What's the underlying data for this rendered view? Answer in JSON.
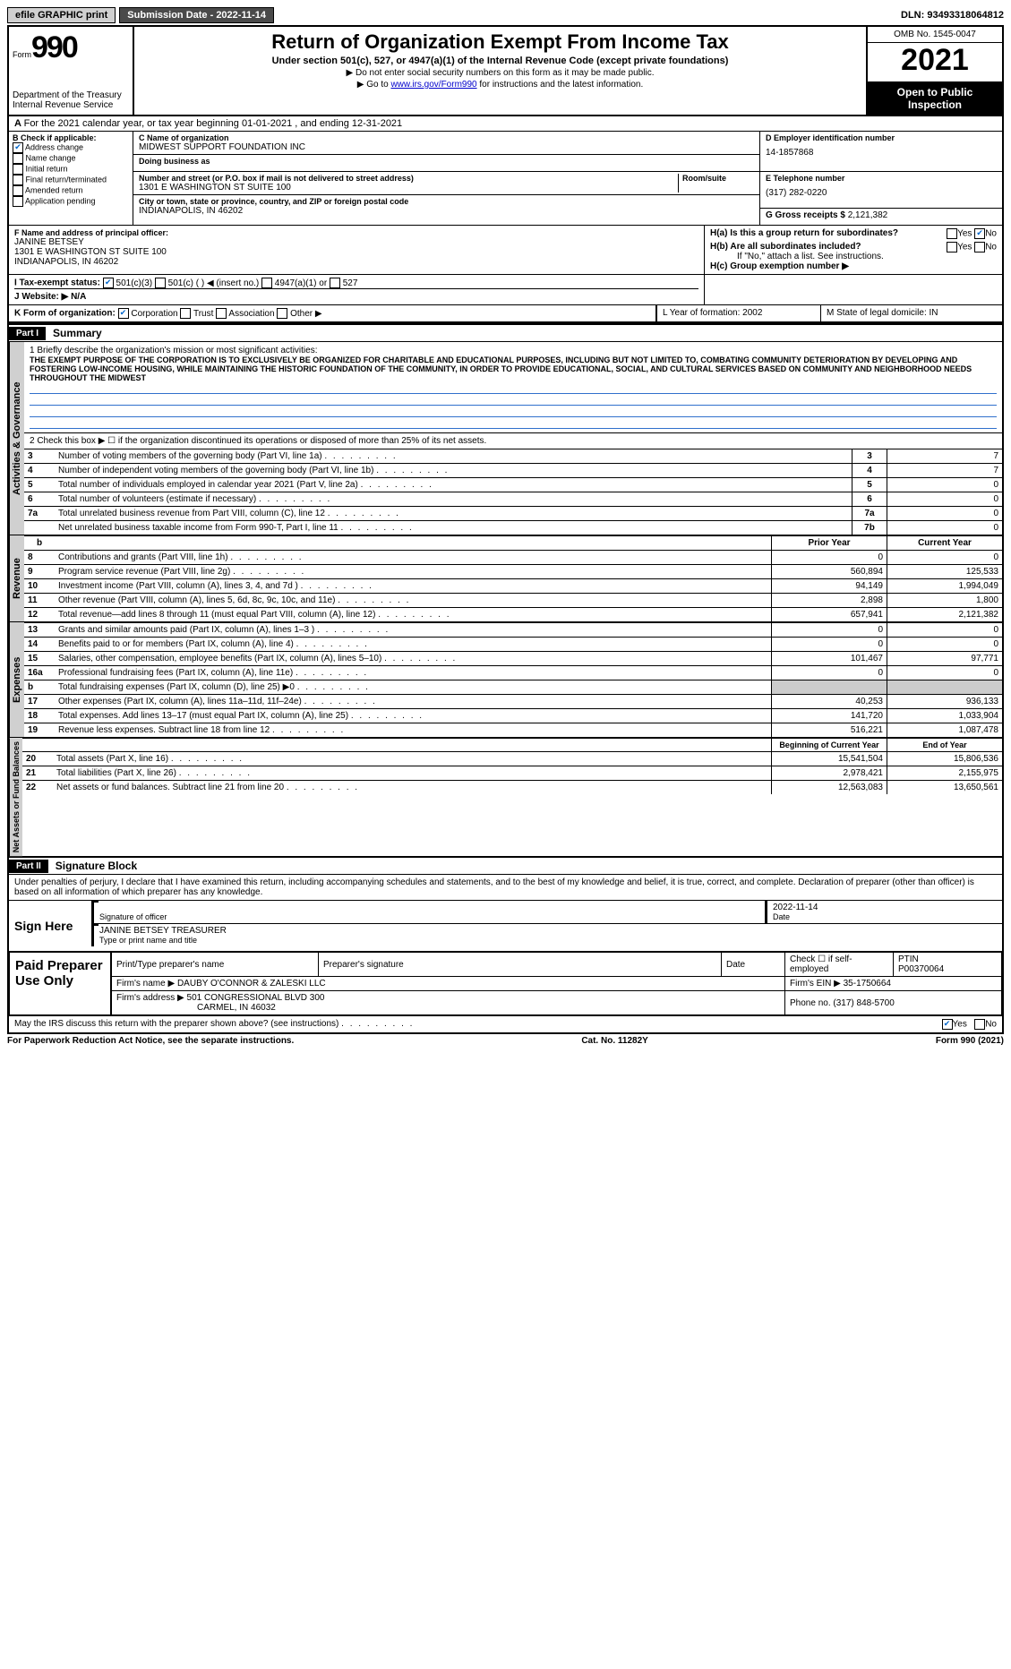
{
  "topbar": {
    "efile": "efile GRAPHIC print",
    "submission_label": "Submission Date - 2022-11-14",
    "dln_label": "DLN: 93493318064812"
  },
  "header": {
    "form_word": "Form",
    "form_num": "990",
    "dept": "Department of the Treasury Internal Revenue Service",
    "title": "Return of Organization Exempt From Income Tax",
    "sub1": "Under section 501(c), 527, or 4947(a)(1) of the Internal Revenue Code (except private foundations)",
    "sub2a": "▶ Do not enter social security numbers on this form as it may be made public.",
    "sub2b_pre": "▶ Go to ",
    "sub2b_link": "www.irs.gov/Form990",
    "sub2b_post": " for instructions and the latest information.",
    "omb": "OMB No. 1545-0047",
    "year": "2021",
    "open": "Open to Public Inspection"
  },
  "lineA": "For the 2021 calendar year, or tax year beginning 01-01-2021   , and ending 12-31-2021",
  "colB": {
    "title": "B Check if applicable:",
    "items": [
      "Address change",
      "Name change",
      "Initial return",
      "Final return/terminated",
      "Amended return",
      "Application pending"
    ],
    "checked_idx": 0
  },
  "colC": {
    "name_label": "C Name of organization",
    "name": "MIDWEST SUPPORT FOUNDATION INC",
    "dba_label": "Doing business as",
    "addr_label": "Number and street (or P.O. box if mail is not delivered to street address)",
    "room_label": "Room/suite",
    "addr": "1301 E WASHINGTON ST SUITE 100",
    "city_label": "City or town, state or province, country, and ZIP or foreign postal code",
    "city": "INDIANAPOLIS, IN  46202"
  },
  "colD": {
    "ein_label": "D Employer identification number",
    "ein": "14-1857868",
    "tel_label": "E Telephone number",
    "tel": "(317) 282-0220",
    "gross_label": "G Gross receipts $",
    "gross": "2,121,382"
  },
  "secF": {
    "label": "F  Name and address of principal officer:",
    "name": "JANINE BETSEY",
    "l1": "1301 E WASHINGTON ST SUITE 100",
    "l2": "INDIANAPOLIS, IN  46202"
  },
  "secH": {
    "ha": "H(a)  Is this a group return for subordinates?",
    "hb": "H(b)  Are all subordinates included?",
    "hb_note": "If \"No,\" attach a list. See instructions.",
    "hc": "H(c)  Group exemption number ▶"
  },
  "lineI_label": "I    Tax-exempt status:",
  "lineI_opts": [
    "501(c)(3)",
    "501(c) (  ) ◀ (insert no.)",
    "4947(a)(1) or",
    "527"
  ],
  "lineJ": "J    Website: ▶  N/A",
  "lineK_label": "K Form of organization:",
  "lineK_opts": [
    "Corporation",
    "Trust",
    "Association",
    "Other ▶"
  ],
  "lineL": "L Year of formation: 2002",
  "lineM": "M State of legal domicile: IN",
  "part1": {
    "tag": "Part I",
    "title": "Summary",
    "q1_label": "1   Briefly describe the organization's mission or most significant activities:",
    "q1_text": "THE EXEMPT PURPOSE OF THE CORPORATION IS TO EXCLUSIVELY BE ORGANIZED FOR CHARITABLE AND EDUCATIONAL PURPOSES, INCLUDING BUT NOT LIMITED TO, COMBATING COMMUNITY DETERIORATION BY DEVELOPING AND FOSTERING LOW-INCOME HOUSING, WHILE MAINTAINING THE HISTORIC FOUNDATION OF THE COMMUNITY, IN ORDER TO PROVIDE EDUCATIONAL, SOCIAL, AND CULTURAL SERVICES BASED ON COMMUNITY AND NEIGHBORHOOD NEEDS THROUGHOUT THE MIDWEST",
    "q2": "2     Check this box ▶ ☐  if the organization discontinued its operations or disposed of more than 25% of its net assets.",
    "gov_rows": [
      {
        "n": "3",
        "t": "Number of voting members of the governing body (Part VI, line 1a)",
        "box": "3",
        "v": "7"
      },
      {
        "n": "4",
        "t": "Number of independent voting members of the governing body (Part VI, line 1b)",
        "box": "4",
        "v": "7"
      },
      {
        "n": "5",
        "t": "Total number of individuals employed in calendar year 2021 (Part V, line 2a)",
        "box": "5",
        "v": "0"
      },
      {
        "n": "6",
        "t": "Total number of volunteers (estimate if necessary)",
        "box": "6",
        "v": "0"
      },
      {
        "n": "7a",
        "t": "Total unrelated business revenue from Part VIII, column (C), line 12",
        "box": "7a",
        "v": "0"
      },
      {
        "n": "",
        "t": "Net unrelated business taxable income from Form 990-T, Part I, line 11",
        "box": "7b",
        "v": "0"
      }
    ],
    "col_hdr_b": "b",
    "col_prior": "Prior Year",
    "col_current": "Current Year",
    "rev_rows": [
      {
        "n": "8",
        "t": "Contributions and grants (Part VIII, line 1h)",
        "p": "0",
        "c": "0"
      },
      {
        "n": "9",
        "t": "Program service revenue (Part VIII, line 2g)",
        "p": "560,894",
        "c": "125,533"
      },
      {
        "n": "10",
        "t": "Investment income (Part VIII, column (A), lines 3, 4, and 7d )",
        "p": "94,149",
        "c": "1,994,049"
      },
      {
        "n": "11",
        "t": "Other revenue (Part VIII, column (A), lines 5, 6d, 8c, 9c, 10c, and 11e)",
        "p": "2,898",
        "c": "1,800"
      },
      {
        "n": "12",
        "t": "Total revenue—add lines 8 through 11 (must equal Part VIII, column (A), line 12)",
        "p": "657,941",
        "c": "2,121,382"
      }
    ],
    "exp_rows": [
      {
        "n": "13",
        "t": "Grants and similar amounts paid (Part IX, column (A), lines 1–3 )",
        "p": "0",
        "c": "0"
      },
      {
        "n": "14",
        "t": "Benefits paid to or for members (Part IX, column (A), line 4)",
        "p": "0",
        "c": "0"
      },
      {
        "n": "15",
        "t": "Salaries, other compensation, employee benefits (Part IX, column (A), lines 5–10)",
        "p": "101,467",
        "c": "97,771"
      },
      {
        "n": "16a",
        "t": "Professional fundraising fees (Part IX, column (A), line 11e)",
        "p": "0",
        "c": "0"
      },
      {
        "n": "b",
        "t": "Total fundraising expenses (Part IX, column (D), line 25) ▶0",
        "p": "GRAY",
        "c": "GRAY"
      },
      {
        "n": "17",
        "t": "Other expenses (Part IX, column (A), lines 11a–11d, 11f–24e)",
        "p": "40,253",
        "c": "936,133"
      },
      {
        "n": "18",
        "t": "Total expenses. Add lines 13–17 (must equal Part IX, column (A), line 25)",
        "p": "141,720",
        "c": "1,033,904"
      },
      {
        "n": "19",
        "t": "Revenue less expenses. Subtract line 18 from line 12",
        "p": "516,221",
        "c": "1,087,478"
      }
    ],
    "na_hdr_b": "Beginning of Current Year",
    "na_hdr_e": "End of Year",
    "na_rows": [
      {
        "n": "20",
        "t": "Total assets (Part X, line 16)",
        "p": "15,541,504",
        "c": "15,806,536"
      },
      {
        "n": "21",
        "t": "Total liabilities (Part X, line 26)",
        "p": "2,978,421",
        "c": "2,155,975"
      },
      {
        "n": "22",
        "t": "Net assets or fund balances. Subtract line 21 from line 20",
        "p": "12,563,083",
        "c": "13,650,561"
      }
    ],
    "vtabs": [
      "Activities & Governance",
      "Revenue",
      "Expenses",
      "Net Assets or Fund Balances"
    ]
  },
  "part2": {
    "tag": "Part II",
    "title": "Signature Block",
    "intro": "Under penalties of perjury, I declare that I have examined this return, including accompanying schedules and statements, and to the best of my knowledge and belief, it is true, correct, and complete. Declaration of preparer (other than officer) is based on all information of which preparer has any knowledge.",
    "sign_here": "Sign Here",
    "sig_officer": "Signature of officer",
    "sig_date": "2022-11-14",
    "date_label": "Date",
    "officer_name": "JANINE BETSEY TREASURER",
    "type_label": "Type or print name and title",
    "paid": "Paid Preparer Use Only",
    "h_name": "Print/Type preparer's name",
    "h_sig": "Preparer's signature",
    "h_date": "Date",
    "h_self": "Check ☐ if self-employed",
    "h_ptin_l": "PTIN",
    "h_ptin": "P00370064",
    "firm_name_l": "Firm's name    ▶",
    "firm_name": "DAUBY O'CONNOR & ZALESKI LLC",
    "firm_ein_l": "Firm's EIN ▶",
    "firm_ein": "35-1750664",
    "firm_addr_l": "Firm's address ▶",
    "firm_addr1": "501 CONGRESSIONAL BLVD 300",
    "firm_addr2": "CARMEL, IN  46032",
    "phone_l": "Phone no.",
    "phone": "(317) 848-5700",
    "discuss": "May the IRS discuss this return with the preparer shown above? (see instructions)"
  },
  "footer": {
    "left": "For Paperwork Reduction Act Notice, see the separate instructions.",
    "mid": "Cat. No. 11282Y",
    "right": "Form 990 (2021)"
  }
}
